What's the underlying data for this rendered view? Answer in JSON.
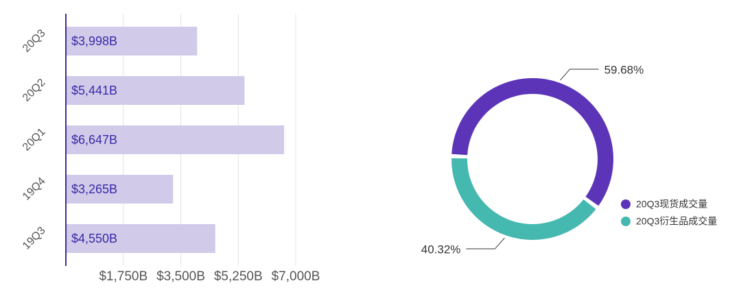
{
  "chart_data": [
    {
      "type": "bar",
      "orientation": "horizontal",
      "categories": [
        "20Q3",
        "20Q2",
        "20Q1",
        "19Q4",
        "19Q3"
      ],
      "values": [
        3998,
        5441,
        6647,
        3265,
        4550
      ],
      "value_labels": [
        "$3,998B",
        "$5,441B",
        "$6,647B",
        "$3,265B",
        "$4,550B"
      ],
      "color": "#d1cbe9",
      "xlim": [
        0,
        7000
      ],
      "xticks": [
        {
          "value": 1750,
          "label": "$1,750B"
        },
        {
          "value": 3500,
          "label": "$3,500B"
        },
        {
          "value": 5250,
          "label": "$5,250B"
        },
        {
          "value": 7000,
          "label": "$7,000B"
        }
      ],
      "grid": true
    },
    {
      "type": "pie",
      "categories": [
        "20Q3现货成交量",
        "20Q3衍生品成交量"
      ],
      "values": [
        59.68,
        40.32
      ],
      "value_labels": [
        "59.68%",
        "40.32%"
      ],
      "colors": [
        "#5b34b8",
        "#45b8b0"
      ]
    }
  ]
}
